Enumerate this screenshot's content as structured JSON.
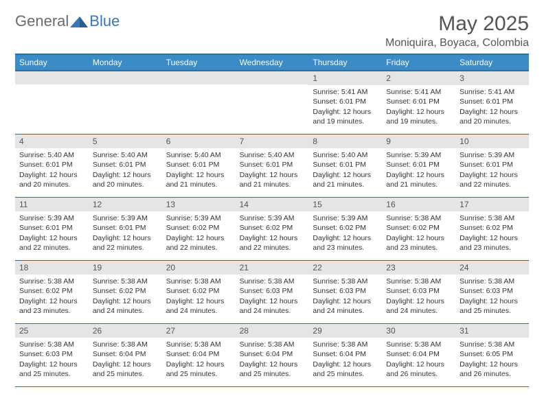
{
  "logo": {
    "general": "General",
    "blue": "Blue"
  },
  "title": "May 2025",
  "location": "Moniquira, Boyaca, Colombia",
  "dayHeaders": [
    "Sunday",
    "Monday",
    "Tuesday",
    "Wednesday",
    "Thursday",
    "Friday",
    "Saturday"
  ],
  "colors": {
    "headerBg": "#3b8bc6",
    "headerBorder": "#2a6fa3",
    "dayNumBg": "#e5e5e5",
    "text": "#333333",
    "title": "#555555"
  },
  "grid": {
    "columns": 7,
    "rows": 5,
    "startOffset": 4
  },
  "days": [
    {
      "n": "1",
      "sunrise": "5:41 AM",
      "sunset": "6:01 PM",
      "daylight": "12 hours and 19 minutes."
    },
    {
      "n": "2",
      "sunrise": "5:41 AM",
      "sunset": "6:01 PM",
      "daylight": "12 hours and 19 minutes."
    },
    {
      "n": "3",
      "sunrise": "5:41 AM",
      "sunset": "6:01 PM",
      "daylight": "12 hours and 20 minutes."
    },
    {
      "n": "4",
      "sunrise": "5:40 AM",
      "sunset": "6:01 PM",
      "daylight": "12 hours and 20 minutes."
    },
    {
      "n": "5",
      "sunrise": "5:40 AM",
      "sunset": "6:01 PM",
      "daylight": "12 hours and 20 minutes."
    },
    {
      "n": "6",
      "sunrise": "5:40 AM",
      "sunset": "6:01 PM",
      "daylight": "12 hours and 21 minutes."
    },
    {
      "n": "7",
      "sunrise": "5:40 AM",
      "sunset": "6:01 PM",
      "daylight": "12 hours and 21 minutes."
    },
    {
      "n": "8",
      "sunrise": "5:40 AM",
      "sunset": "6:01 PM",
      "daylight": "12 hours and 21 minutes."
    },
    {
      "n": "9",
      "sunrise": "5:39 AM",
      "sunset": "6:01 PM",
      "daylight": "12 hours and 21 minutes."
    },
    {
      "n": "10",
      "sunrise": "5:39 AM",
      "sunset": "6:01 PM",
      "daylight": "12 hours and 22 minutes."
    },
    {
      "n": "11",
      "sunrise": "5:39 AM",
      "sunset": "6:01 PM",
      "daylight": "12 hours and 22 minutes."
    },
    {
      "n": "12",
      "sunrise": "5:39 AM",
      "sunset": "6:01 PM",
      "daylight": "12 hours and 22 minutes."
    },
    {
      "n": "13",
      "sunrise": "5:39 AM",
      "sunset": "6:02 PM",
      "daylight": "12 hours and 22 minutes."
    },
    {
      "n": "14",
      "sunrise": "5:39 AM",
      "sunset": "6:02 PM",
      "daylight": "12 hours and 22 minutes."
    },
    {
      "n": "15",
      "sunrise": "5:39 AM",
      "sunset": "6:02 PM",
      "daylight": "12 hours and 23 minutes."
    },
    {
      "n": "16",
      "sunrise": "5:38 AM",
      "sunset": "6:02 PM",
      "daylight": "12 hours and 23 minutes."
    },
    {
      "n": "17",
      "sunrise": "5:38 AM",
      "sunset": "6:02 PM",
      "daylight": "12 hours and 23 minutes."
    },
    {
      "n": "18",
      "sunrise": "5:38 AM",
      "sunset": "6:02 PM",
      "daylight": "12 hours and 23 minutes."
    },
    {
      "n": "19",
      "sunrise": "5:38 AM",
      "sunset": "6:02 PM",
      "daylight": "12 hours and 24 minutes."
    },
    {
      "n": "20",
      "sunrise": "5:38 AM",
      "sunset": "6:02 PM",
      "daylight": "12 hours and 24 minutes."
    },
    {
      "n": "21",
      "sunrise": "5:38 AM",
      "sunset": "6:03 PM",
      "daylight": "12 hours and 24 minutes."
    },
    {
      "n": "22",
      "sunrise": "5:38 AM",
      "sunset": "6:03 PM",
      "daylight": "12 hours and 24 minutes."
    },
    {
      "n": "23",
      "sunrise": "5:38 AM",
      "sunset": "6:03 PM",
      "daylight": "12 hours and 24 minutes."
    },
    {
      "n": "24",
      "sunrise": "5:38 AM",
      "sunset": "6:03 PM",
      "daylight": "12 hours and 25 minutes."
    },
    {
      "n": "25",
      "sunrise": "5:38 AM",
      "sunset": "6:03 PM",
      "daylight": "12 hours and 25 minutes."
    },
    {
      "n": "26",
      "sunrise": "5:38 AM",
      "sunset": "6:04 PM",
      "daylight": "12 hours and 25 minutes."
    },
    {
      "n": "27",
      "sunrise": "5:38 AM",
      "sunset": "6:04 PM",
      "daylight": "12 hours and 25 minutes."
    },
    {
      "n": "28",
      "sunrise": "5:38 AM",
      "sunset": "6:04 PM",
      "daylight": "12 hours and 25 minutes."
    },
    {
      "n": "29",
      "sunrise": "5:38 AM",
      "sunset": "6:04 PM",
      "daylight": "12 hours and 25 minutes."
    },
    {
      "n": "30",
      "sunrise": "5:38 AM",
      "sunset": "6:04 PM",
      "daylight": "12 hours and 26 minutes."
    },
    {
      "n": "31",
      "sunrise": "5:38 AM",
      "sunset": "6:05 PM",
      "daylight": "12 hours and 26 minutes."
    }
  ],
  "labels": {
    "sunrise": "Sunrise:",
    "sunset": "Sunset:",
    "daylight": "Daylight:"
  }
}
